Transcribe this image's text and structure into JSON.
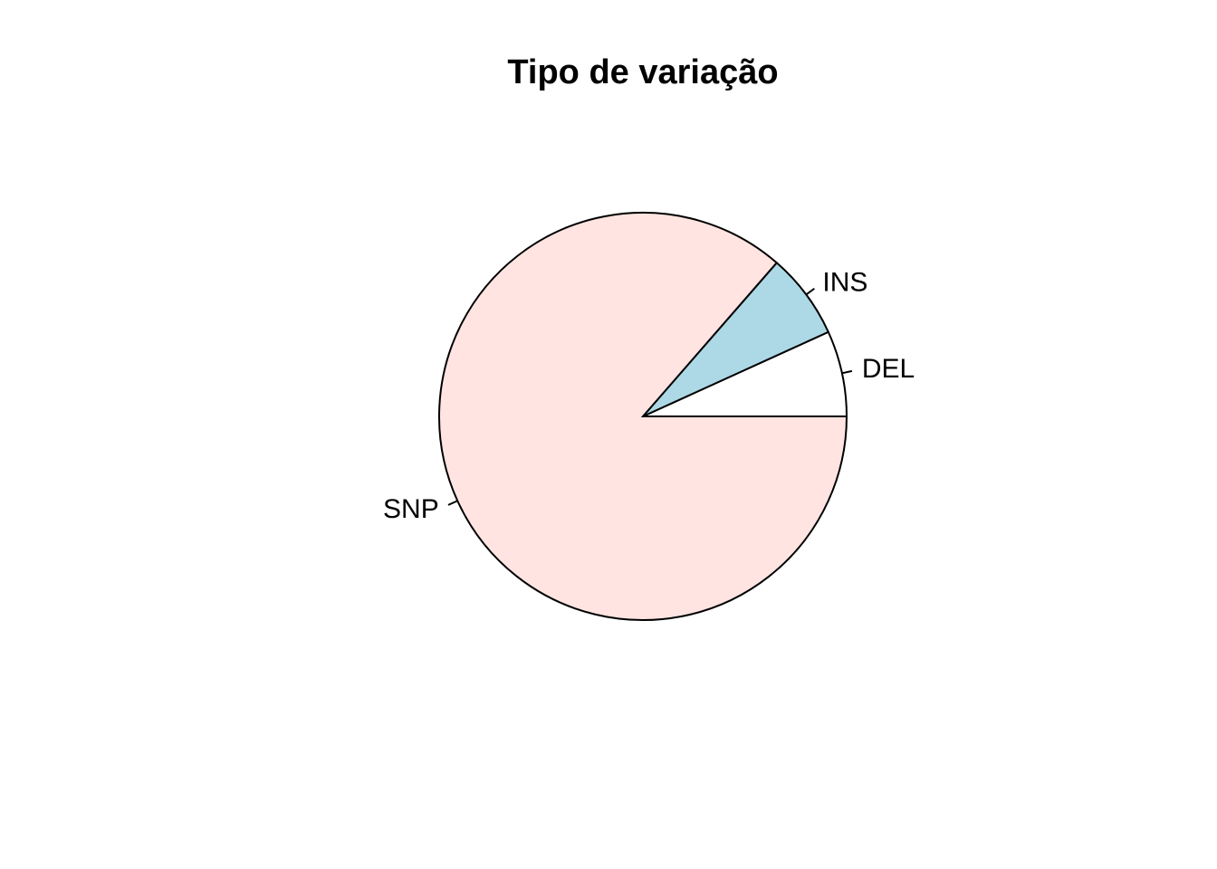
{
  "chart_data": {
    "type": "pie",
    "title": "Tipo de variação",
    "direction": "counterclockwise",
    "start_angle_deg": 0,
    "categories": [
      "DEL",
      "INS",
      "SNP"
    ],
    "values": [
      0.068,
      0.068,
      0.864
    ],
    "colors": [
      "#ffffff",
      "#add8e6",
      "#ffe4e1"
    ],
    "border_color": "#000000",
    "legend": "none"
  }
}
